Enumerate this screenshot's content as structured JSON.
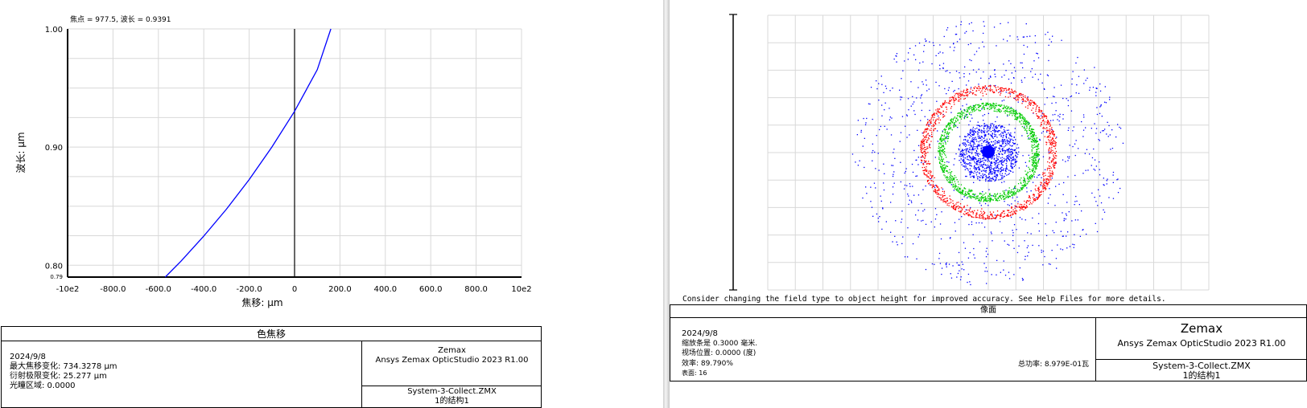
{
  "chart_data": [
    {
      "type": "line",
      "title": "焦点 = 977.5, 波长 = 0.9391",
      "xlabel": "焦移: µm",
      "ylabel": "波长: µm",
      "xlim": [
        -1000,
        1000
      ],
      "ylim": [
        0.79,
        1.0
      ],
      "x_tick_labels": [
        "-10e2",
        "-800.0",
        "-600.0",
        "-400.0",
        "-200.0",
        "0",
        "200.0",
        "400.0",
        "600.0",
        "800.0",
        "10e2"
      ],
      "y_tick_labels": [
        "1.00",
        "0.90",
        "0.80",
        "0.79"
      ],
      "y_ticks": [
        1.0,
        0.9,
        0.8,
        0.79
      ],
      "grid": true,
      "series": [
        {
          "color": "#0000ff",
          "x": [
            -570,
            -500,
            -400,
            -300,
            -200,
            -100,
            0,
            100,
            160
          ],
          "y": [
            0.79,
            0.8035,
            0.8247,
            0.8475,
            0.8725,
            0.9,
            0.9303,
            0.9655,
            1.0
          ]
        }
      ]
    },
    {
      "type": "scatter",
      "title": "",
      "grid": true,
      "series": [
        {
          "color": "#0000ff",
          "ring_radius_range": [
            0,
            1.0
          ]
        },
        {
          "color": "#ff0000",
          "ring_radius_range": [
            0.42,
            0.5
          ]
        },
        {
          "color": "#00cc00",
          "ring_radius_range": [
            0.3,
            0.37
          ]
        }
      ]
    }
  ],
  "left_info": {
    "title": "色焦移",
    "date": "2024/9/8",
    "line1": "最大焦移变化: 734.3278 µm",
    "line2": "衍射极限变化: 25.277 µm",
    "line3": "光瞳区域: 0.0000",
    "company": "Zemax",
    "product": "Ansys Zemax OpticStudio 2023 R1.00",
    "file": "System-3-Collect.ZMX",
    "config": "1的结构1"
  },
  "right_info": {
    "warning": "Consider changing the field type to object height for improved accuracy. See Help Files for more details.",
    "title": "像面",
    "date": "2024/9/8",
    "line1": "缩放条是 0.3000 毫米.",
    "line2": "视场位置: 0.0000 (度)",
    "line3": "效率:  89.790%",
    "line4": "表面: 16",
    "total_power": "总功率: 8.979E-01瓦",
    "company": "Zemax",
    "product": "Ansys Zemax OpticStudio 2023 R1.00",
    "file": "System-3-Collect.ZMX",
    "config": "1的结构1"
  },
  "colors": {
    "grid": "#d8d8d8",
    "curve": "#0000ff",
    "red": "#ff0000",
    "green": "#00cc00",
    "blue": "#0000ff"
  }
}
